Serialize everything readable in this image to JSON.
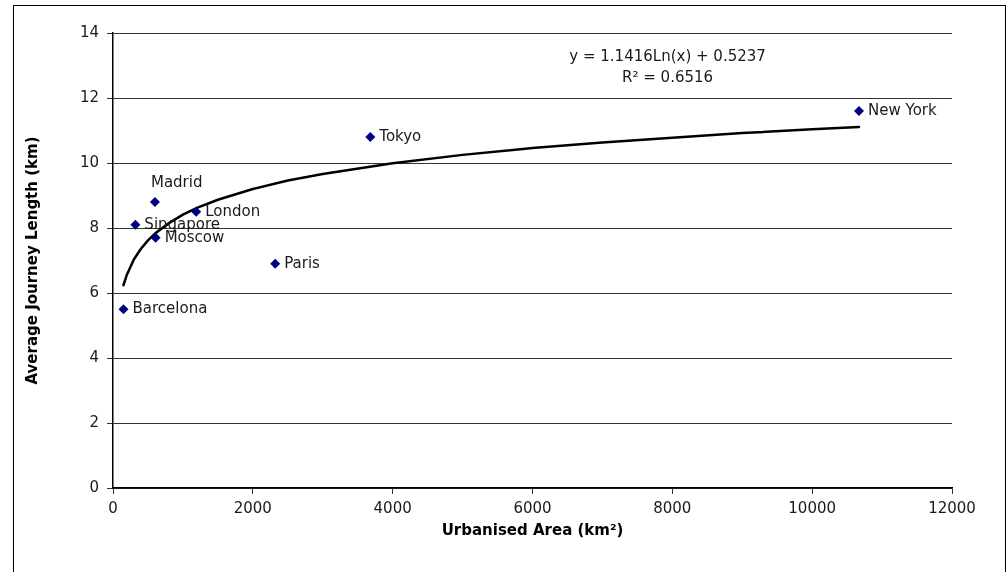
{
  "chart_data": {
    "type": "scatter",
    "xlabel": "Urbanised Area (km²)",
    "ylabel": "Average Journey Length (km)",
    "annotations": [
      "y = 1.1416Ln(x) + 0.5237",
      "R² = 0.6516"
    ],
    "xlim": [
      0,
      12000
    ],
    "xticks": [
      0,
      2000,
      4000,
      6000,
      8000,
      10000,
      12000
    ],
    "ylim": [
      0,
      14
    ],
    "yticks": [
      0,
      2,
      4,
      6,
      8,
      10,
      12,
      14
    ],
    "grid": "y",
    "legend": false,
    "marker": "diamond",
    "series": [
      {
        "name": "Barcelona",
        "color": "#000080",
        "x": [
          150
        ],
        "values": [
          5.5
        ]
      },
      {
        "name": "Singapore",
        "color": "#000080",
        "x": [
          320
        ],
        "values": [
          8.1
        ]
      },
      {
        "name": "Madrid",
        "color": "#000080",
        "x": [
          600
        ],
        "values": [
          8.8
        ]
      },
      {
        "name": "Moscow",
        "color": "#000080",
        "x": [
          610
        ],
        "values": [
          7.7
        ]
      },
      {
        "name": "London",
        "color": "#000080",
        "x": [
          1190
        ],
        "values": [
          8.5
        ]
      },
      {
        "name": "Paris",
        "color": "#000080",
        "x": [
          2320
        ],
        "values": [
          6.9
        ]
      },
      {
        "name": "Tokyo",
        "color": "#000080",
        "x": [
          3680
        ],
        "values": [
          10.8
        ]
      },
      {
        "name": "New York",
        "color": "#000080",
        "x": [
          10670
        ],
        "values": [
          11.6
        ]
      },
      {
        "type": "line",
        "color": "#000000",
        "marker": "none",
        "x": [
          150,
          200,
          300,
          400,
          500,
          600,
          800,
          1000,
          1200,
          1500,
          2000,
          2500,
          3000,
          4000,
          5000,
          6000,
          7000,
          8000,
          9000,
          10000,
          10670
        ],
        "values": [
          6.24,
          6.57,
          7.04,
          7.36,
          7.62,
          7.83,
          8.15,
          8.41,
          8.62,
          8.87,
          9.2,
          9.46,
          9.66,
          9.99,
          10.25,
          10.46,
          10.63,
          10.78,
          10.92,
          11.04,
          11.11
        ]
      }
    ]
  }
}
